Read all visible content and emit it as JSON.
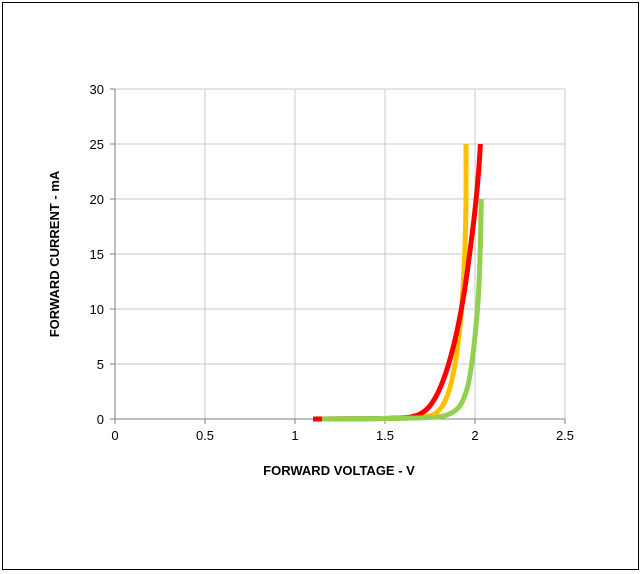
{
  "chart_data": {
    "type": "line",
    "title": "",
    "xlabel": "FORWARD VOLTAGE - V",
    "ylabel": "FORWARD CURRENT - mA",
    "xlim": [
      0,
      2.5
    ],
    "ylim": [
      0,
      30
    ],
    "xticks": [
      0,
      0.5,
      1,
      1.5,
      2,
      2.5
    ],
    "yticks": [
      0,
      5,
      10,
      15,
      20,
      25,
      30
    ],
    "xtick_labels": [
      "0",
      "0.5",
      "1",
      "1.5",
      "2",
      "2.5"
    ],
    "ytick_labels": [
      "0",
      "5",
      "10",
      "15",
      "20",
      "25",
      "30"
    ],
    "grid": true,
    "legend": "none",
    "series": [
      {
        "color": "#ffc000",
        "x": [
          1.1,
          1.3,
          1.5,
          1.65,
          1.72,
          1.77,
          1.8,
          1.83,
          1.86,
          1.89,
          1.91,
          1.93,
          1.945,
          1.95,
          1.95
        ],
        "y": [
          0,
          0.02,
          0.05,
          0.1,
          0.2,
          0.4,
          0.8,
          1.5,
          2.8,
          5,
          7.5,
          11,
          16,
          20,
          25
        ]
      },
      {
        "color": "#ff0000",
        "x": [
          1.1,
          1.3,
          1.5,
          1.6,
          1.65,
          1.7,
          1.75,
          1.8,
          1.85,
          1.9,
          1.94,
          1.97,
          2.0,
          2.02,
          2.03
        ],
        "y": [
          0,
          0.02,
          0.05,
          0.1,
          0.2,
          0.5,
          1.2,
          2.6,
          4.8,
          8,
          11.5,
          15,
          19,
          22.5,
          25
        ]
      },
      {
        "color": "#92d050",
        "x": [
          1.15,
          1.3,
          1.5,
          1.7,
          1.8,
          1.85,
          1.9,
          1.93,
          1.96,
          1.98,
          2.0,
          2.02,
          2.03,
          2.035
        ],
        "y": [
          0,
          0.02,
          0.05,
          0.1,
          0.2,
          0.4,
          0.9,
          1.6,
          3,
          4.8,
          7.5,
          11.5,
          16,
          20
        ]
      }
    ]
  }
}
